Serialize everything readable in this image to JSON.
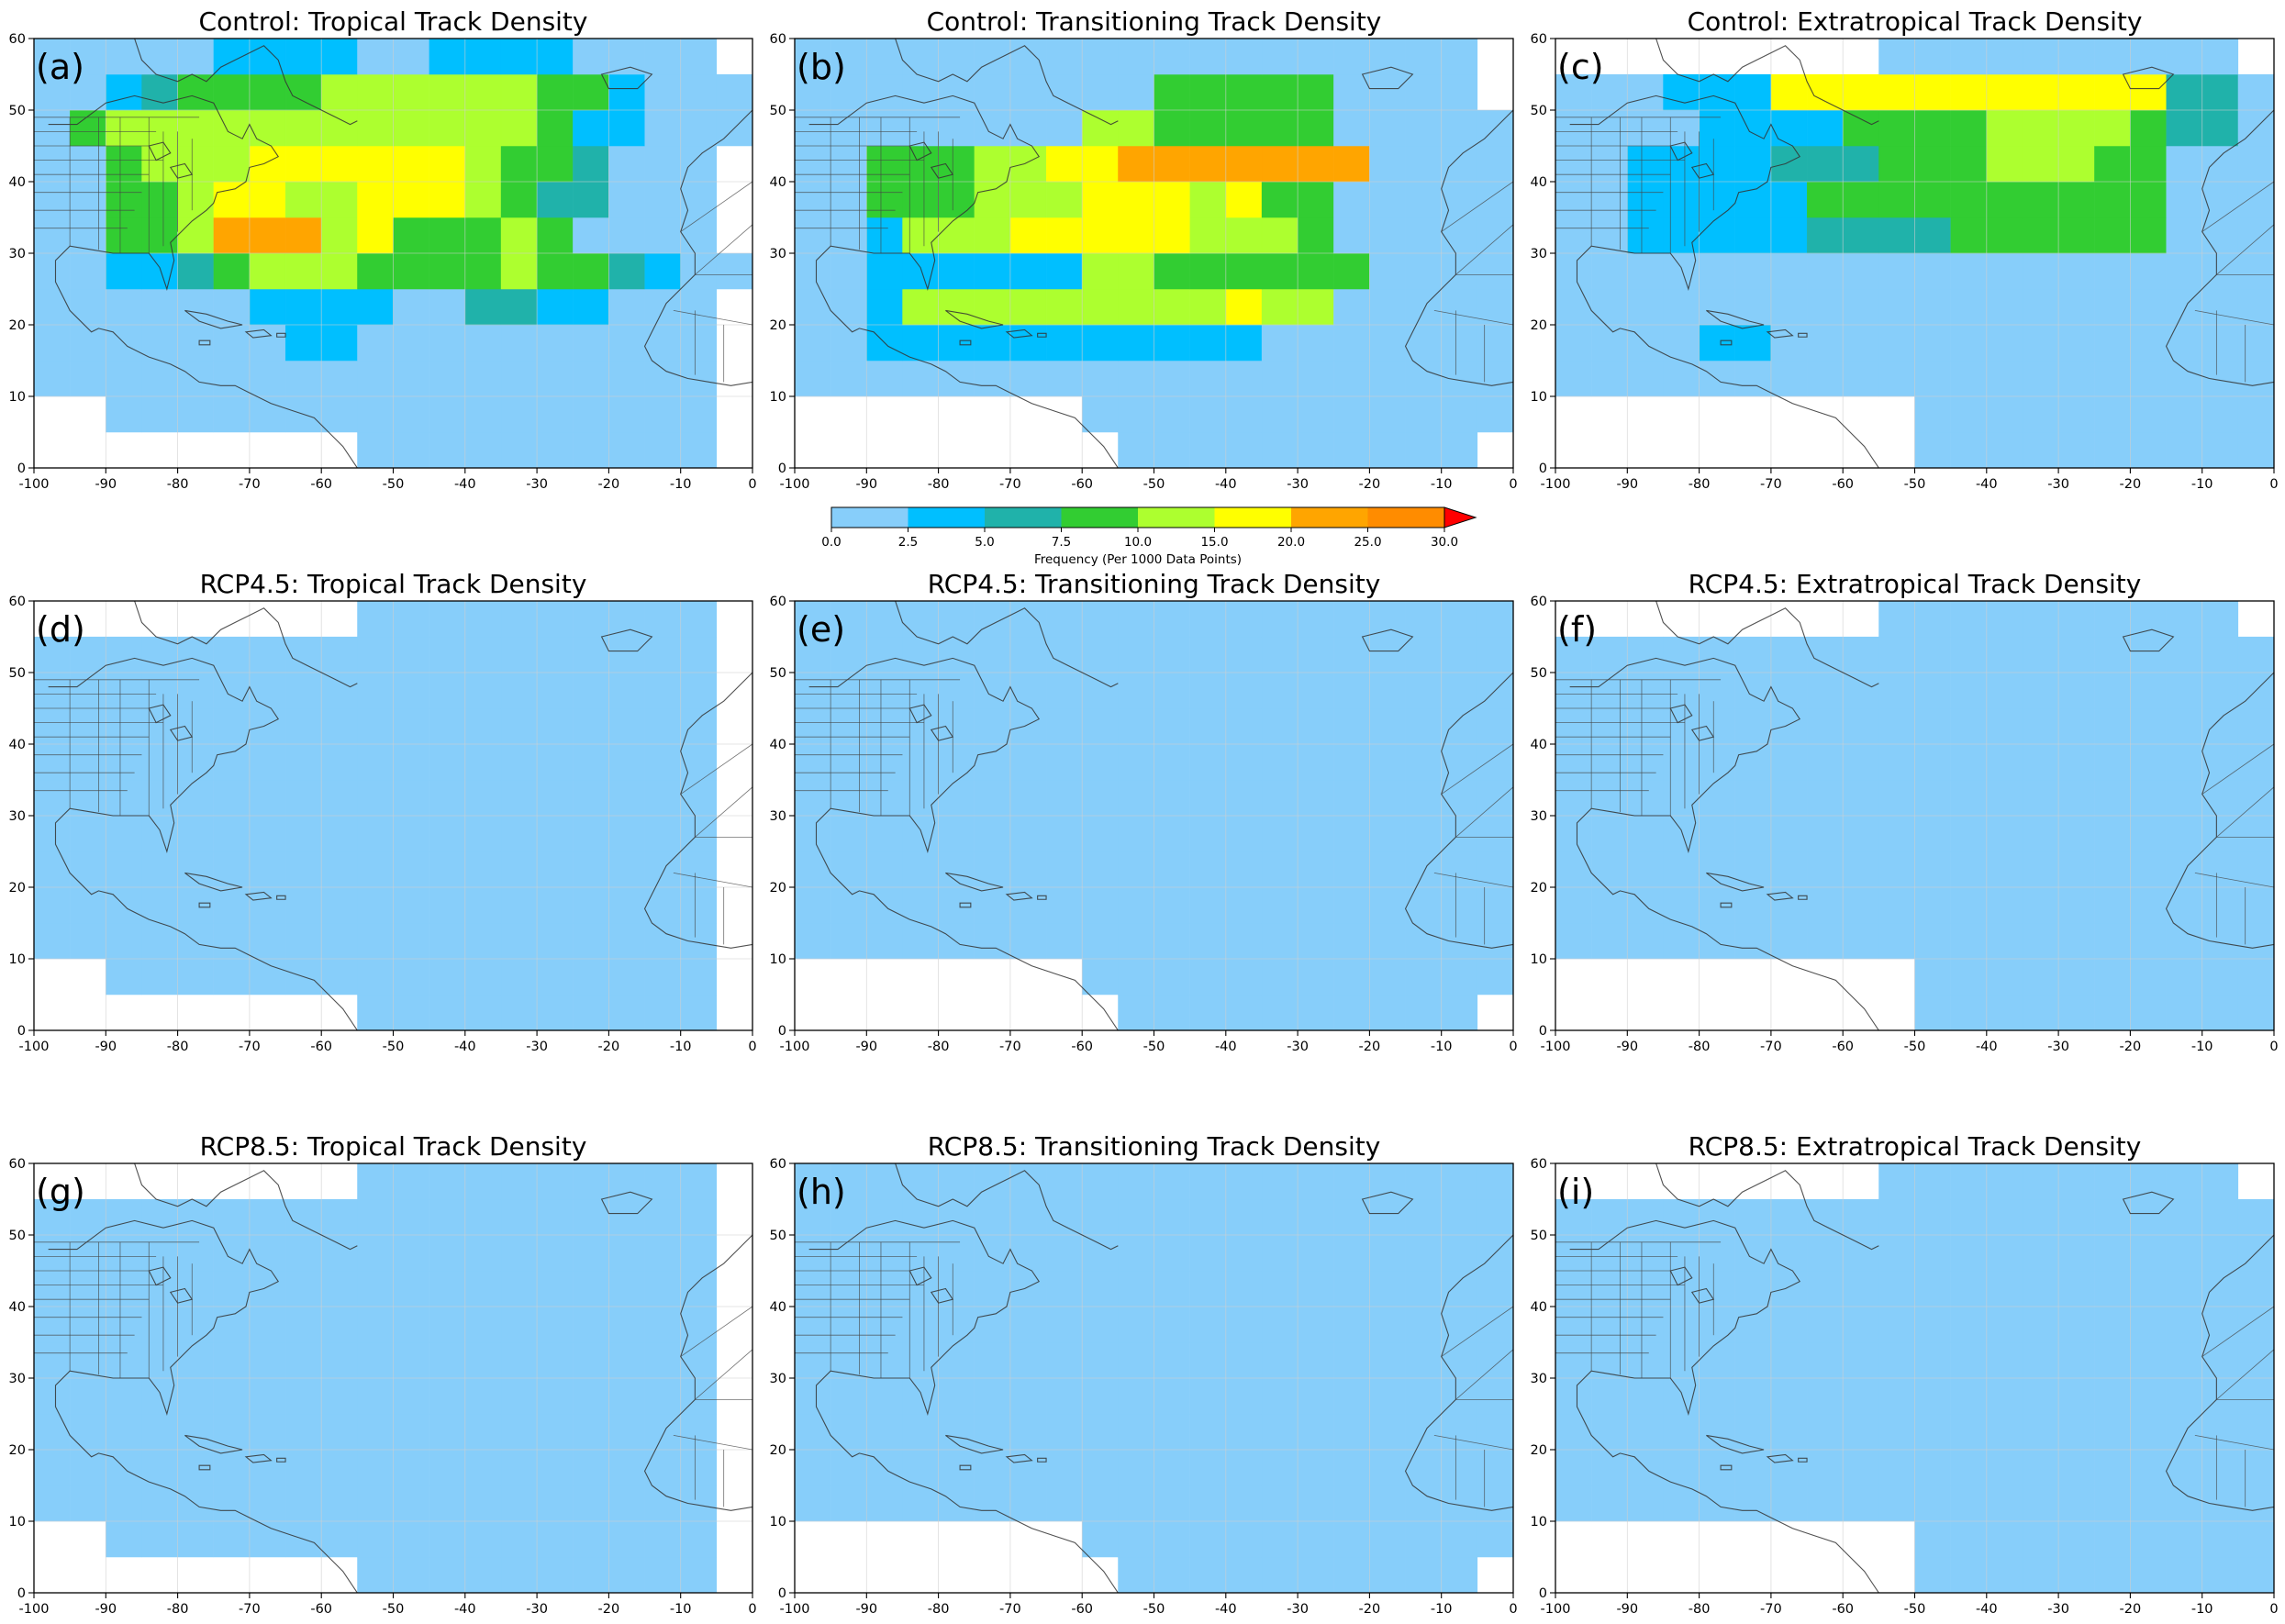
{
  "colorbar": {
    "title": "Frequency (Per 1000 Data Points)",
    "ticks": [
      "0.0",
      "2.5",
      "5.0",
      "7.5",
      "10.0",
      "15.0",
      "20.0",
      "25.0",
      "30.0"
    ],
    "bounds": [
      0,
      2.5,
      5,
      7.5,
      10,
      15,
      20,
      25,
      30
    ],
    "colors": [
      "#87cefa",
      "#00bfff",
      "#20b2aa",
      "#32cd32",
      "#adff2f",
      "#ffff00",
      "#ffa500",
      "#ff8c00"
    ],
    "extend_color": "#ff0000"
  },
  "axes": {
    "x_ticks": [
      "-100",
      "-90",
      "-80",
      "-70",
      "-60",
      "-50",
      "-40",
      "-30",
      "-20",
      "-10",
      "0"
    ],
    "y_ticks": [
      "0",
      "10",
      "20",
      "30",
      "40",
      "50",
      "60"
    ],
    "x_range": [
      -100,
      0
    ],
    "y_range": [
      0,
      60
    ]
  },
  "panels": [
    {
      "title": "Control: Tropical Track Density",
      "letter": "(a)"
    },
    {
      "title": "Control: Transitioning Track Density",
      "letter": "(b)"
    },
    {
      "title": "Control: Extratropical Track Density",
      "letter": "(c)"
    },
    {
      "title": "RCP4.5: Tropical Track Density",
      "letter": "(d)"
    },
    {
      "title": "RCP4.5: Transitioning Track Density",
      "letter": "(e)"
    },
    {
      "title": "RCP4.5: Extratropical Track Density",
      "letter": "(f)"
    },
    {
      "title": "RCP8.5: Tropical Track Density",
      "letter": "(g)"
    },
    {
      "title": "RCP8.5: Transitioning Track Density",
      "letter": "(h)"
    },
    {
      "title": "RCP8.5: Extratropical Track Density",
      "letter": "(i)"
    }
  ],
  "chart_data": {
    "type": "heatmap",
    "grid": {
      "lon_start": -100,
      "lat_start": 0,
      "cell_size": 5,
      "columns": 20,
      "rows": 12
    },
    "value_encoding": "0 = no data, 1..8 = colorbar bin index (1: 0.0-2.5, 2: 2.5-5.0, 3: 5.0-7.5, 4: 7.5-10.0, 5: 10.0-15.0, 6: 15.0-20.0, 7: 20.0-25.0, 8: 25.0-30.0), 9 = above 30.0",
    "maps": [
      [
        "00000000011111111110",
        "00111111111111111110",
        "11111111111111111110",
        "11111112211111111110",
        "11111122221133221110",
        "11223455544445443211",
        "11445777564445411110",
        "11445665566654331110",
        "11455566666654431110",
        "14555555555555422111",
        "11234444555555442111",
        "11111222211222211110"
      ],
      [
        "00000000011111111110",
        "00000000111111111111",
        "11111111111111111111",
        "11222222222221111111",
        "11255555555565511111",
        "11222222554444441111",
        "11255566666555411111",
        "11444555666564411111",
        "11444556677777771111",
        "11111111554444411111",
        "11111111114444411110",
        "11111111111111111110"
      ],
      [
        "00000000001111111111",
        "00000000001111111111",
        "11111111111111111111",
        "11112211111111111111",
        "11111111111111111111",
        "11111111111111111111",
        "11222223333444444111",
        "11222224444444444111",
        "11222233344455544111",
        "11112222444455554331",
        "11122266666666666331",
        "00000000011111111110"
      ],
      [
        "00000000011111111110",
        "00111111111111111110",
        "11111111111111111110",
        "11111111111111111110",
        "11111111111111111110",
        "11111111111111111110",
        "11111111111111111110",
        "11111111111111111110",
        "11111111111111111110",
        "11111111111111111110",
        "11111111111111111110",
        "00000000011111111110"
      ],
      [
        "00000000011111111110",
        "00000000111111111111",
        "11111111111111111111",
        "11111111111111111111",
        "11111111111111111111",
        "11111111111111111111",
        "11111111111111111111",
        "11111111111111111111",
        "11111111111111111111",
        "11111111111111111111",
        "11111111111111111111",
        "11111111111111111111"
      ],
      [
        "00000000001111111111",
        "00000000001111111111",
        "11111111111111111111",
        "11111111111111111111",
        "11111111111111111111",
        "11111111111111111111",
        "11111111111111111111",
        "11111111111111111111",
        "11111111111111111111",
        "11111111111111111111",
        "11111111111111111111",
        "00000000011111111110"
      ],
      [
        "00000000011111111110",
        "00111111111111111110",
        "11111111111111111110",
        "11111111111111111110",
        "11111111111111111110",
        "11111111111111111110",
        "11111111111111111110",
        "11111111111111111110",
        "11111111111111111110",
        "11111111111111111110",
        "11111111111111111110",
        "00000000011111111110"
      ],
      [
        "00000000011111111110",
        "00000000111111111111",
        "11111111111111111111",
        "11111111111111111111",
        "11111111111111111111",
        "11111111111111111111",
        "11111111111111111111",
        "11111111111111111111",
        "11111111111111111111",
        "11111111111111111111",
        "11111111111111111111",
        "11111111111111111111"
      ],
      [
        "00000000001111111111",
        "00000000001111111111",
        "11111111111111111111",
        "11111111111111111111",
        "11111111111111111111",
        "11111111111111111111",
        "11111111111111111111",
        "11111111111111111111",
        "11111111111111111111",
        "11111111111111111111",
        "11111111111111111111",
        "00000000011111111110"
      ]
    ]
  }
}
